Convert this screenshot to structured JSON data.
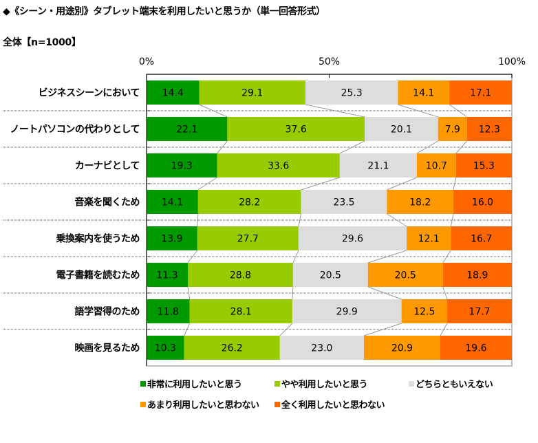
{
  "title": "◆《シーン・用途別》タブレット端末を利用したいと思うか（単一回答形式）",
  "subtitle": "全体【n=1000】",
  "chart_data": {
    "type": "bar",
    "orientation": "horizontal",
    "stacked": "percent",
    "title": "◆《シーン・用途別》タブレット端末を利用したいと思うか（単一回答形式）",
    "subtitle": "全体【n=1000】",
    "xlabel": "",
    "ylabel": "",
    "xlim": [
      0,
      100
    ],
    "x_ticks": [
      "0%",
      "50%",
      "100%"
    ],
    "x_tick_values": [
      0,
      50,
      100
    ],
    "legend_position": "bottom",
    "categories": [
      "ビジネスシーンにおいて",
      "ノートパソコンの代わりとして",
      "カーナビとして",
      "音楽を聞くため",
      "乗換案内を使うため",
      "電子書籍を読むため",
      "語学習得のため",
      "映画を見るため"
    ],
    "series": [
      {
        "name": "非常に利用したいと思う",
        "color": "#009900",
        "values": [
          14.4,
          22.1,
          19.3,
          14.1,
          13.9,
          11.3,
          11.8,
          10.3
        ]
      },
      {
        "name": "やや利用したいと思う",
        "color": "#99CC00",
        "values": [
          29.1,
          37.6,
          33.6,
          28.2,
          27.7,
          28.8,
          28.1,
          26.2
        ]
      },
      {
        "name": "どちらともいえない",
        "color": "#DDDDDD",
        "values": [
          25.3,
          20.1,
          21.1,
          23.5,
          29.6,
          20.5,
          29.9,
          23.0
        ]
      },
      {
        "name": "あまり利用したいと思わない",
        "color": "#FF9900",
        "values": [
          14.1,
          7.9,
          10.7,
          18.2,
          12.1,
          20.5,
          12.5,
          20.9
        ]
      },
      {
        "name": "全く利用したいと思わない",
        "color": "#FF6600",
        "values": [
          17.1,
          12.3,
          15.3,
          16.0,
          16.7,
          18.9,
          17.7,
          19.6
        ]
      }
    ],
    "value_labels": [
      [
        "14.4",
        "29.1",
        "25.3",
        "14.1",
        "17.1"
      ],
      [
        "22.1",
        "37.6",
        "20.1",
        "7.9",
        "12.3"
      ],
      [
        "19.3",
        "33.6",
        "21.1",
        "10.7",
        "15.3"
      ],
      [
        "14.1",
        "28.2",
        "23.5",
        "18.2",
        "16.0"
      ],
      [
        "13.9",
        "27.7",
        "29.6",
        "12.1",
        "16.7"
      ],
      [
        "11.3",
        "28.8",
        "20.5",
        "20.5",
        "18.9"
      ],
      [
        "11.8",
        "28.1",
        "29.9",
        "12.5",
        "17.7"
      ],
      [
        "10.3",
        "26.2",
        "23.0",
        "20.9",
        "19.6"
      ]
    ],
    "series_lines": true,
    "grid": false
  }
}
